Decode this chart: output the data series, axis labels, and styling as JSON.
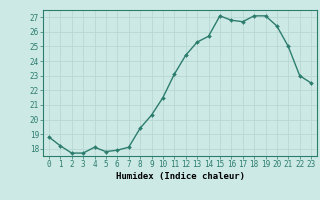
{
  "x": [
    0,
    1,
    2,
    3,
    4,
    5,
    6,
    7,
    8,
    9,
    10,
    11,
    12,
    13,
    14,
    15,
    16,
    17,
    18,
    19,
    20,
    21,
    22,
    23
  ],
  "y": [
    18.8,
    18.2,
    17.7,
    17.7,
    18.1,
    17.8,
    17.9,
    18.1,
    19.4,
    20.3,
    21.5,
    23.1,
    24.4,
    25.3,
    25.7,
    27.1,
    26.8,
    26.7,
    27.1,
    27.1,
    26.4,
    25.0,
    23.0,
    22.5
  ],
  "line_color": "#2d7d6e",
  "marker_color": "#2d7d6e",
  "bg_color": "#cce9e5",
  "grid_color": "#b8d8d4",
  "xlabel": "Humidex (Indice chaleur)",
  "ylim": [
    17.5,
    27.5
  ],
  "xlim": [
    -0.5,
    23.5
  ],
  "yticks": [
    18,
    19,
    20,
    21,
    22,
    23,
    24,
    25,
    26,
    27
  ],
  "xticks": [
    0,
    1,
    2,
    3,
    4,
    5,
    6,
    7,
    8,
    9,
    10,
    11,
    12,
    13,
    14,
    15,
    16,
    17,
    18,
    19,
    20,
    21,
    22,
    23
  ],
  "tick_fontsize": 5.5,
  "xlabel_fontsize": 6.5,
  "marker_size": 2.0,
  "line_width": 1.0
}
